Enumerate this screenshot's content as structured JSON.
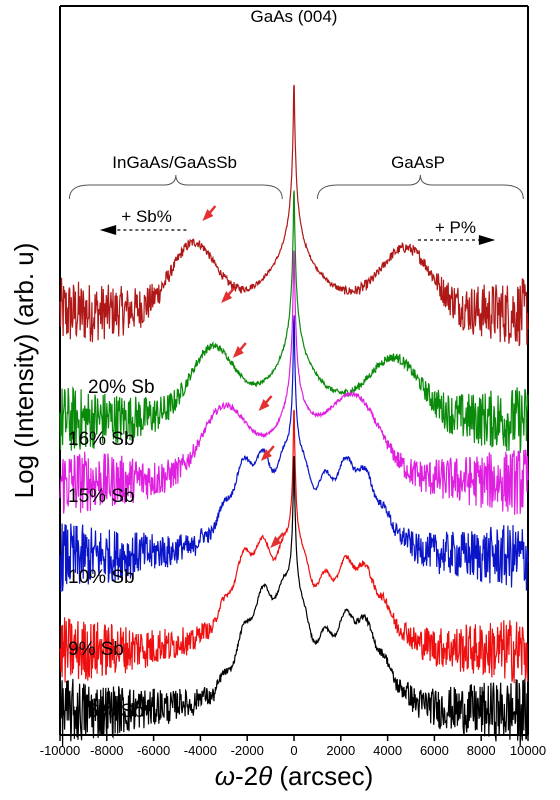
{
  "chart_data": {
    "type": "line",
    "title": "",
    "xlabel_parts": {
      "omega": "ω",
      "middle": "-2",
      "theta": "θ",
      "unit": " (arcsec)"
    },
    "ylabel": "Log (Intensity) (arb. u)",
    "xlim": [
      -10000,
      10000
    ],
    "xticks": [
      "-10000",
      "-8000",
      "-6000",
      "-4000",
      "-2000",
      "0",
      "2000",
      "4000",
      "6000",
      "8000",
      "10000"
    ],
    "grid": false,
    "legend": "none",
    "annotations": {
      "peak_label": "GaAs (004)",
      "left_bracket_label": "InGaAs/GaAsSb",
      "right_bracket_label": "GaAsP",
      "sb_arrow_label": "+ Sb%",
      "p_arrow_label": "+ P%"
    },
    "series": [
      {
        "name": "20% Sb",
        "color": "#b01818",
        "offset": 5.0,
        "substrate_peak": 0,
        "peak_center": -4300,
        "peak_height": 1.6,
        "gaasp_center": 4800,
        "gaasp_height": 1.5,
        "fringes": false
      },
      {
        "name": "16% Sb",
        "color": "#0a8a0a",
        "offset": 4.0,
        "substrate_peak": 0,
        "peak_center": -3500,
        "peak_height": 1.6,
        "gaasp_center": 4300,
        "gaasp_height": 1.4,
        "fringes": false
      },
      {
        "name": "15% Sb",
        "color": "#e020e0",
        "offset": 3.0,
        "substrate_peak": 0,
        "peak_center": -3000,
        "peak_height": 1.6,
        "gaasp_center": 2600,
        "gaasp_height": 1.8,
        "fringes": false
      },
      {
        "name": "10% Sb",
        "color": "#0a14c8",
        "offset": 2.0,
        "substrate_peak": 0,
        "peak_center": -1900,
        "peak_height": 1.7,
        "gaasp_center": 2600,
        "gaasp_height": 1.8,
        "fringes": true
      },
      {
        "name": "9% Sb",
        "color": "#ee1010",
        "offset": 1.0,
        "substrate_peak": 0,
        "peak_center": -1800,
        "peak_height": 1.8,
        "gaasp_center": 2700,
        "gaasp_height": 1.7,
        "fringes": true
      },
      {
        "name": "6% Sb",
        "color": "#000000",
        "offset": 0.0,
        "substrate_peak": 0,
        "peak_center": -1400,
        "peak_height": 1.9,
        "gaasp_center": 2700,
        "gaasp_height": 1.9,
        "fringes": true
      }
    ],
    "peak_markers": [
      {
        "series": "20% Sb",
        "x": -4300
      },
      {
        "series": "16% Sb",
        "x": -3500
      },
      {
        "series": "15% Sb",
        "x": -3000
      },
      {
        "series": "10% Sb",
        "x": -1900
      },
      {
        "series": "9% Sb",
        "x": -1800
      },
      {
        "series": "6% Sb",
        "x": -1400
      }
    ]
  }
}
